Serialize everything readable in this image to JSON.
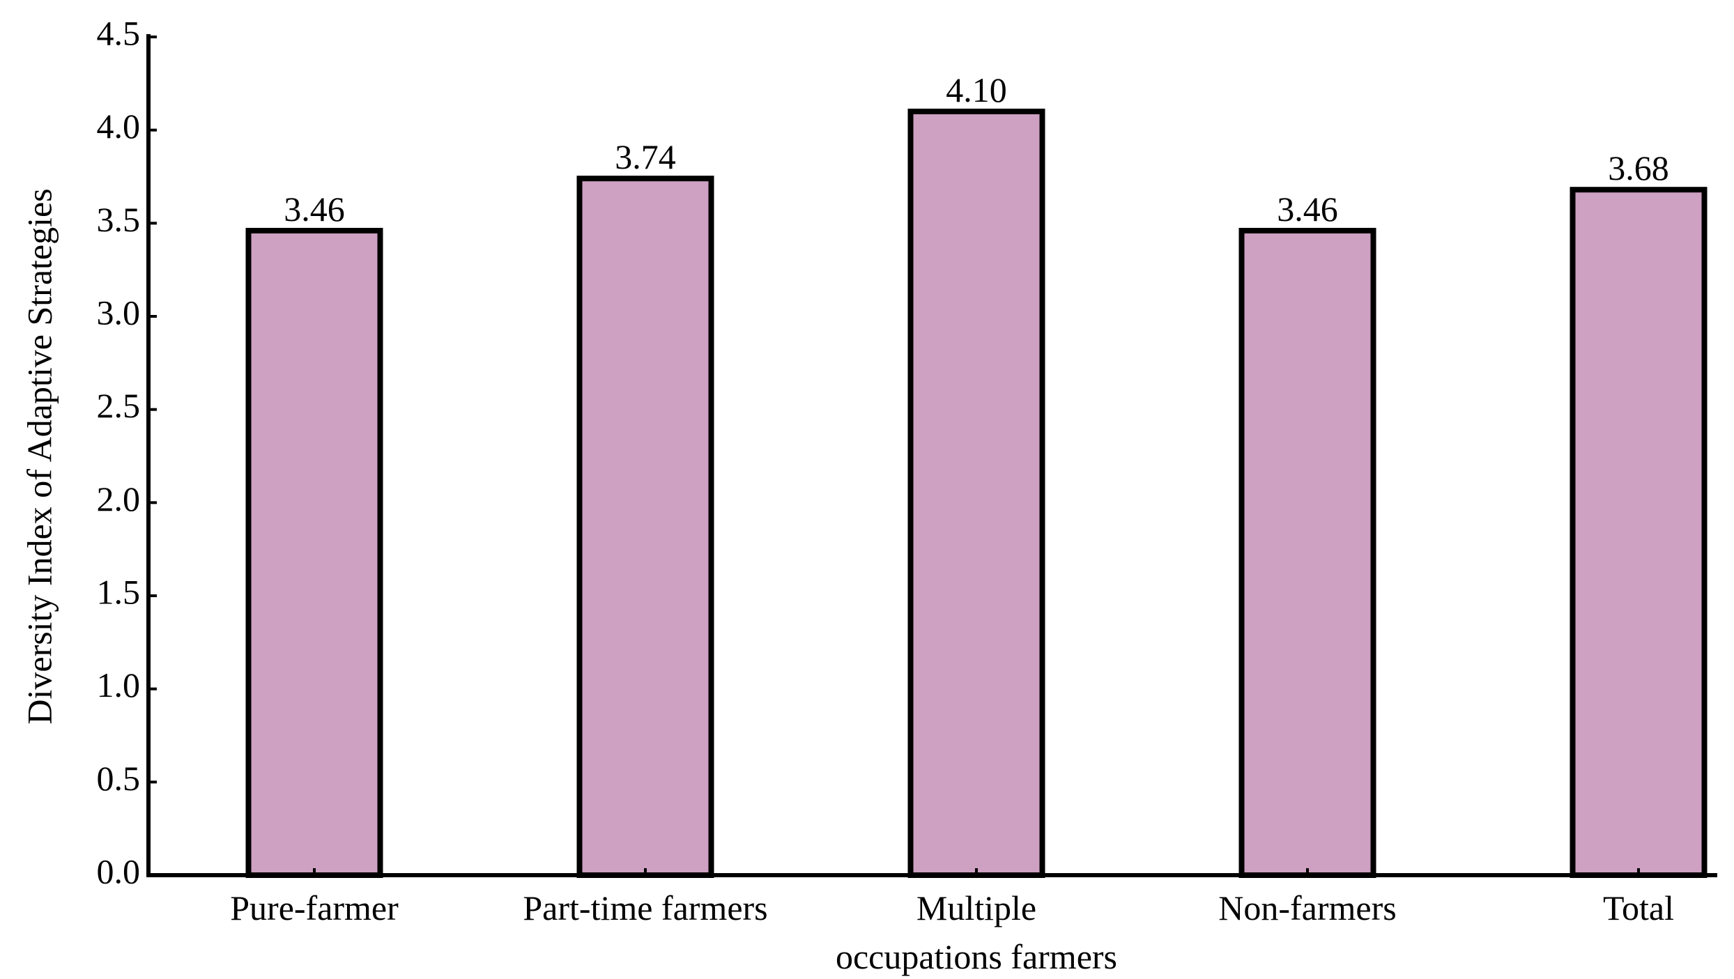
{
  "chart_data": {
    "type": "bar",
    "y_label": "Diversity Index of Adaptive Strategies",
    "categories": [
      "Pure-farmer",
      "Part-time farmers",
      "Multiple\noccupations farmers",
      "Non-farmers",
      "Total"
    ],
    "values": [
      3.46,
      3.74,
      4.1,
      3.46,
      3.68
    ],
    "value_labels": [
      "3.46",
      "3.74",
      "4.10",
      "3.46",
      "3.68"
    ],
    "color": "#cea0c2",
    "ylim": [
      0,
      4.5
    ],
    "yticks": [
      {
        "value": 0,
        "label": "0.0"
      },
      0.5,
      {
        "value": 1,
        "label": "1.0"
      },
      1.5,
      {
        "value": 2,
        "label": "2.0"
      },
      2.5,
      {
        "value": 3,
        "label": "3.0"
      },
      3.5,
      {
        "value": 4,
        "label": "4.0"
      },
      4.5
    ],
    "grid": false
  }
}
